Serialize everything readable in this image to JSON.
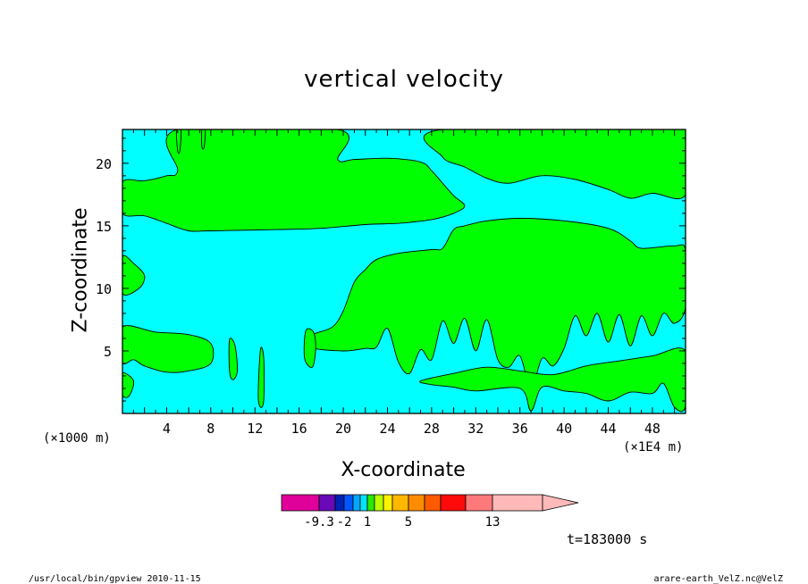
{
  "chart_data": {
    "type": "heatmap",
    "subtype": "filled-contour",
    "title": "vertical velocity",
    "xlabel": "X-coordinate",
    "ylabel": "Z-coordinate",
    "x_unit_label": "(×1000 m)",
    "x_scale_label": "(×1E4 m)",
    "xlim": [
      0,
      51
    ],
    "ylim": [
      0,
      22.7
    ],
    "xticks": [
      4,
      8,
      12,
      16,
      20,
      24,
      28,
      32,
      36,
      40,
      44,
      48
    ],
    "yticks": [
      5,
      10,
      15,
      20
    ],
    "background_color": "#00ffff",
    "region_color": "#00ff00",
    "regions": [
      {
        "name": "upper-left-band",
        "points": [
          [
            0,
            18.5
          ],
          [
            2,
            18.6
          ],
          [
            4,
            19.0
          ],
          [
            5,
            19.4
          ],
          [
            5,
            22.7
          ],
          [
            19.5,
            22.7
          ],
          [
            19.5,
            20.3
          ],
          [
            21,
            20.3
          ],
          [
            24,
            20.4
          ],
          [
            27,
            20.1
          ],
          [
            28,
            19.4
          ],
          [
            29,
            18.4
          ],
          [
            30,
            17.4
          ],
          [
            31,
            16.6
          ],
          [
            30,
            16.0
          ],
          [
            28,
            15.5
          ],
          [
            25,
            15.2
          ],
          [
            22,
            15.1
          ],
          [
            18,
            14.8
          ],
          [
            14,
            14.7
          ],
          [
            8,
            14.6
          ],
          [
            6,
            14.6
          ],
          [
            4,
            15.2
          ],
          [
            2,
            15.8
          ],
          [
            0,
            16.0
          ]
        ]
      },
      {
        "name": "upper-right-band",
        "points": [
          [
            29,
            22.7
          ],
          [
            51,
            22.7
          ],
          [
            51,
            17.5
          ],
          [
            48,
            17.6
          ],
          [
            46,
            17.2
          ],
          [
            44,
            17.9
          ],
          [
            41,
            18.7
          ],
          [
            38,
            19.0
          ],
          [
            35,
            18.4
          ],
          [
            33,
            18.8
          ],
          [
            31,
            19.7
          ],
          [
            29,
            20.5
          ]
        ]
      },
      {
        "name": "mid-right-mass",
        "points": [
          [
            21,
            10.5
          ],
          [
            22,
            11.5
          ],
          [
            23,
            12.3
          ],
          [
            25,
            12.8
          ],
          [
            28,
            13.1
          ],
          [
            29,
            13.2
          ],
          [
            30,
            14.7
          ],
          [
            31,
            15.0
          ],
          [
            33,
            15.4
          ],
          [
            36,
            15.6
          ],
          [
            40,
            15.4
          ],
          [
            44,
            14.8
          ],
          [
            46,
            13.8
          ],
          [
            47,
            13.2
          ],
          [
            50,
            13.4
          ],
          [
            51,
            13.0
          ],
          [
            51,
            8.5
          ],
          [
            50,
            7.2
          ],
          [
            49,
            8.0
          ],
          [
            48,
            6.2
          ],
          [
            47,
            7.8
          ],
          [
            46,
            5.4
          ],
          [
            45,
            7.9
          ],
          [
            44,
            5.7
          ],
          [
            43,
            8.0
          ],
          [
            42,
            6.2
          ],
          [
            41,
            7.8
          ],
          [
            40,
            5.2
          ],
          [
            39,
            3.8
          ],
          [
            38,
            4.4
          ],
          [
            37,
            2.0
          ],
          [
            36,
            4.6
          ],
          [
            35,
            3.7
          ],
          [
            34,
            4.3
          ],
          [
            33,
            7.5
          ],
          [
            32,
            5.0
          ],
          [
            31,
            7.6
          ],
          [
            30,
            5.6
          ],
          [
            29,
            7.4
          ],
          [
            28,
            4.3
          ],
          [
            27,
            5.1
          ],
          [
            26,
            3.2
          ],
          [
            25,
            4.1
          ],
          [
            24,
            6.8
          ],
          [
            23,
            5.3
          ],
          [
            22,
            5.2
          ],
          [
            20,
            5.0
          ],
          [
            17,
            5.3
          ],
          [
            17,
            6.2
          ],
          [
            19,
            6.9
          ],
          [
            20,
            8.2
          ]
        ]
      },
      {
        "name": "left-low-band",
        "points": [
          [
            0,
            6.9
          ],
          [
            3,
            6.5
          ],
          [
            6,
            6.3
          ],
          [
            8,
            5.6
          ],
          [
            8,
            4.0
          ],
          [
            6,
            3.4
          ],
          [
            4,
            3.3
          ],
          [
            2,
            3.8
          ],
          [
            1,
            4.3
          ],
          [
            0,
            4.1
          ]
        ]
      },
      {
        "name": "lower-right-band",
        "points": [
          [
            27,
            2.6
          ],
          [
            30,
            3.2
          ],
          [
            33,
            3.7
          ],
          [
            36,
            3.4
          ],
          [
            39,
            3.1
          ],
          [
            42,
            3.8
          ],
          [
            45,
            4.2
          ],
          [
            48,
            4.6
          ],
          [
            51,
            5.0
          ],
          [
            51,
            0.6
          ],
          [
            50,
            0.5
          ],
          [
            49,
            2.4
          ],
          [
            48,
            1.6
          ],
          [
            46,
            1.7
          ],
          [
            44,
            1.0
          ],
          [
            42,
            1.6
          ],
          [
            40,
            1.8
          ],
          [
            38,
            2.1
          ],
          [
            37,
            0.2
          ],
          [
            36,
            2.0
          ],
          [
            32,
            1.8
          ],
          [
            30,
            2.1
          ],
          [
            28,
            2.3
          ]
        ]
      },
      {
        "name": "left-edge-patch",
        "points": [
          [
            0,
            12.5
          ],
          [
            1,
            12.0
          ],
          [
            2,
            11.0
          ],
          [
            1.5,
            10.0
          ],
          [
            0,
            9.6
          ]
        ]
      },
      {
        "name": "left-small-lens",
        "points": [
          [
            0,
            3.2
          ],
          [
            1,
            2.6
          ],
          [
            0.6,
            1.4
          ],
          [
            0,
            1.5
          ]
        ]
      },
      {
        "name": "spike-x10",
        "points": [
          [
            9.7,
            5.9
          ],
          [
            10.2,
            5.4
          ],
          [
            10.4,
            3.4
          ],
          [
            10.0,
            2.7
          ],
          [
            9.7,
            3.4
          ]
        ]
      },
      {
        "name": "spike-x12",
        "points": [
          [
            12.5,
            5.1
          ],
          [
            12.8,
            4.4
          ],
          [
            12.8,
            1.1
          ],
          [
            12.5,
            0.5
          ],
          [
            12.3,
            1.5
          ]
        ]
      },
      {
        "name": "blob-x17",
        "points": [
          [
            16.6,
            6.6
          ],
          [
            17.3,
            6.5
          ],
          [
            17.5,
            5.2
          ],
          [
            17.2,
            3.7
          ],
          [
            16.5,
            4.4
          ]
        ]
      },
      {
        "name": "top-spike-x5",
        "points": [
          [
            4.9,
            22.7
          ],
          [
            5.3,
            22.7
          ],
          [
            5.2,
            21.0
          ],
          [
            5.0,
            21.0
          ]
        ]
      },
      {
        "name": "top-spike-x8",
        "points": [
          [
            7.2,
            22.7
          ],
          [
            7.5,
            22.7
          ],
          [
            7.4,
            21.3
          ],
          [
            7.2,
            21.3
          ]
        ]
      }
    ],
    "colorbar": {
      "tick_labels": [
        "-9.3",
        "-2",
        "1",
        "5",
        "13"
      ],
      "colors": [
        "#e0019a",
        "#6a09b8",
        "#0023b5",
        "#0057ff",
        "#00a8ff",
        "#00e3f8",
        "#2be800",
        "#b9ff00",
        "#fff200",
        "#ffb800",
        "#ff8c00",
        "#ff5a00",
        "#ff0a0a",
        "#fe7a7a",
        "#ffb9b9"
      ]
    }
  },
  "time_label": "t=183000 s",
  "footer": {
    "left": "/usr/local/bin/gpview   2010-11-15",
    "right": "arare-earth_VelZ.nc@VelZ"
  }
}
